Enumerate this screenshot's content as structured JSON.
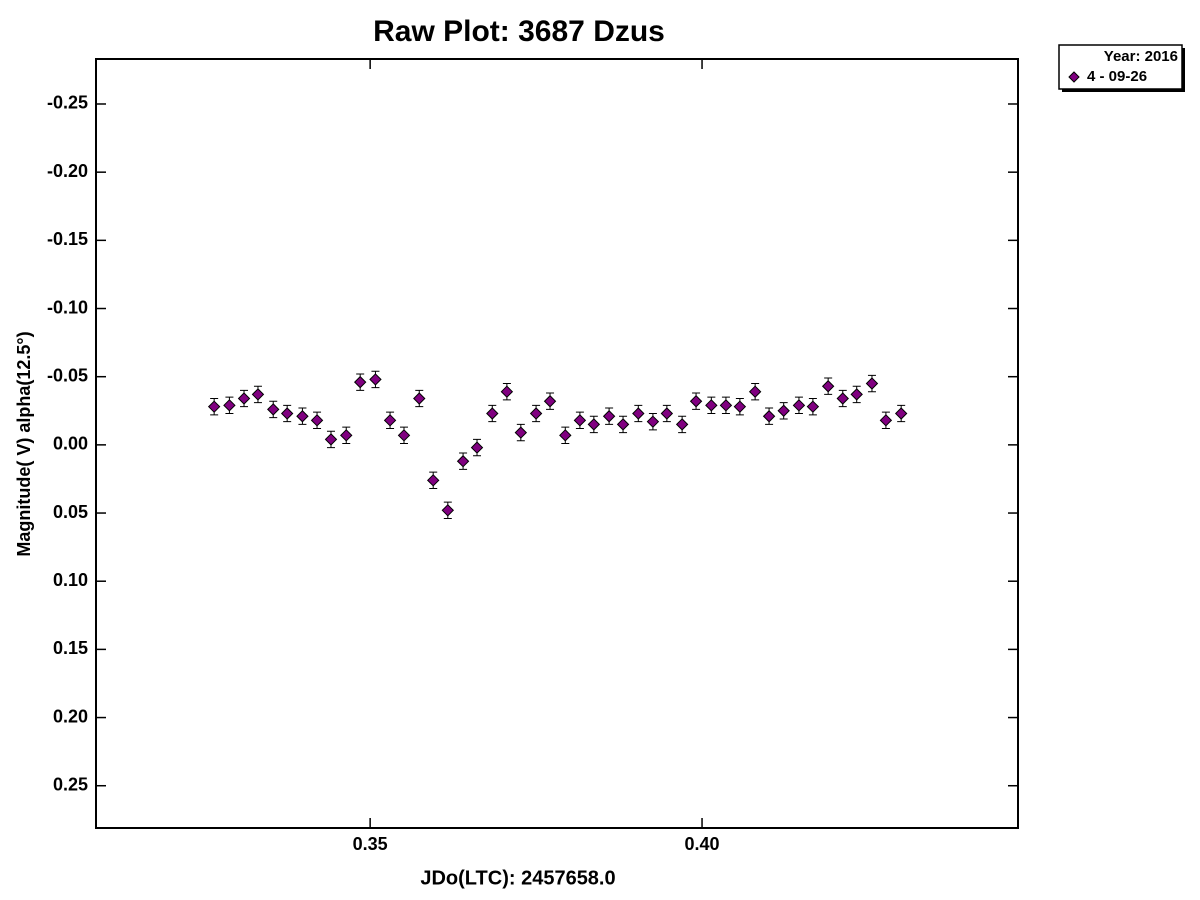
{
  "chart_data": {
    "type": "scatter",
    "title": "Raw Plot: 3687 Dzus",
    "xlabel": "JDo(LTC): 2457658.0",
    "ylabel": "Magnitude( V) alpha(12.5°)",
    "xlim": [
      0.3087,
      0.4476
    ],
    "ylim": [
      -0.283,
      0.281
    ],
    "y_inverted": true,
    "xticks": [
      0.35,
      {
        "value": 0.4,
        "label": "0.40"
      }
    ],
    "yticks": [
      -0.25,
      {
        "value": -0.2,
        "label": "-0.20"
      },
      -0.15,
      {
        "value": -0.1,
        "label": "-0.10"
      },
      -0.05,
      {
        "value": 0,
        "label": "0.00"
      },
      0.05,
      {
        "value": 0.1,
        "label": "0.10"
      },
      0.15,
      {
        "value": 0.2,
        "label": "0.20"
      },
      0.25
    ],
    "grid": false,
    "legend_title": "Year: 2016",
    "legend_position": "outside-top-right",
    "series": [
      {
        "name": "4 - 09-26",
        "color": "#800080",
        "x": [
          0.3265,
          0.3288,
          0.331,
          0.3331,
          0.3354,
          0.3375,
          0.3398,
          0.342,
          0.3441,
          0.3464,
          0.3485,
          0.3508,
          0.353,
          0.3551,
          0.3574,
          0.3595,
          0.3617,
          0.364,
          0.3661,
          0.3684,
          0.3706,
          0.3727,
          0.375,
          0.3771,
          0.3794,
          0.3816,
          0.3837,
          0.386,
          0.3881,
          0.3904,
          0.3926,
          0.3947,
          0.397,
          0.3991,
          0.4014,
          0.4036,
          0.4057,
          0.408,
          0.4101,
          0.4123,
          0.4146,
          0.4167,
          0.419,
          0.4212,
          0.4233,
          0.4256,
          0.4277,
          0.43
        ],
        "values": [
          -0.028,
          -0.029,
          -0.034,
          -0.037,
          -0.026,
          -0.023,
          -0.021,
          -0.018,
          -0.004,
          -0.007,
          -0.046,
          -0.048,
          -0.018,
          -0.007,
          -0.034,
          0.026,
          0.048,
          0.012,
          0.002,
          -0.023,
          -0.039,
          -0.009,
          -0.023,
          -0.032,
          -0.007,
          -0.018,
          -0.015,
          -0.021,
          -0.015,
          -0.023,
          -0.017,
          -0.023,
          -0.015,
          -0.032,
          -0.029,
          -0.029,
          -0.028,
          -0.039,
          -0.021,
          -0.025,
          -0.029,
          -0.028,
          -0.043,
          -0.034,
          -0.037,
          -0.045,
          -0.018,
          -0.023
        ],
        "errors": [
          0.006,
          0.006,
          0.006,
          0.006,
          0.006,
          0.006,
          0.006,
          0.006,
          0.006,
          0.006,
          0.006,
          0.006,
          0.006,
          0.006,
          0.006,
          0.006,
          0.006,
          0.006,
          0.006,
          0.006,
          0.006,
          0.006,
          0.006,
          0.006,
          0.006,
          0.006,
          0.006,
          0.006,
          0.006,
          0.006,
          0.006,
          0.006,
          0.006,
          0.006,
          0.006,
          0.006,
          0.006,
          0.006,
          0.006,
          0.006,
          0.006,
          0.006,
          0.006,
          0.006,
          0.006,
          0.006,
          0.006,
          0.006
        ]
      }
    ]
  }
}
